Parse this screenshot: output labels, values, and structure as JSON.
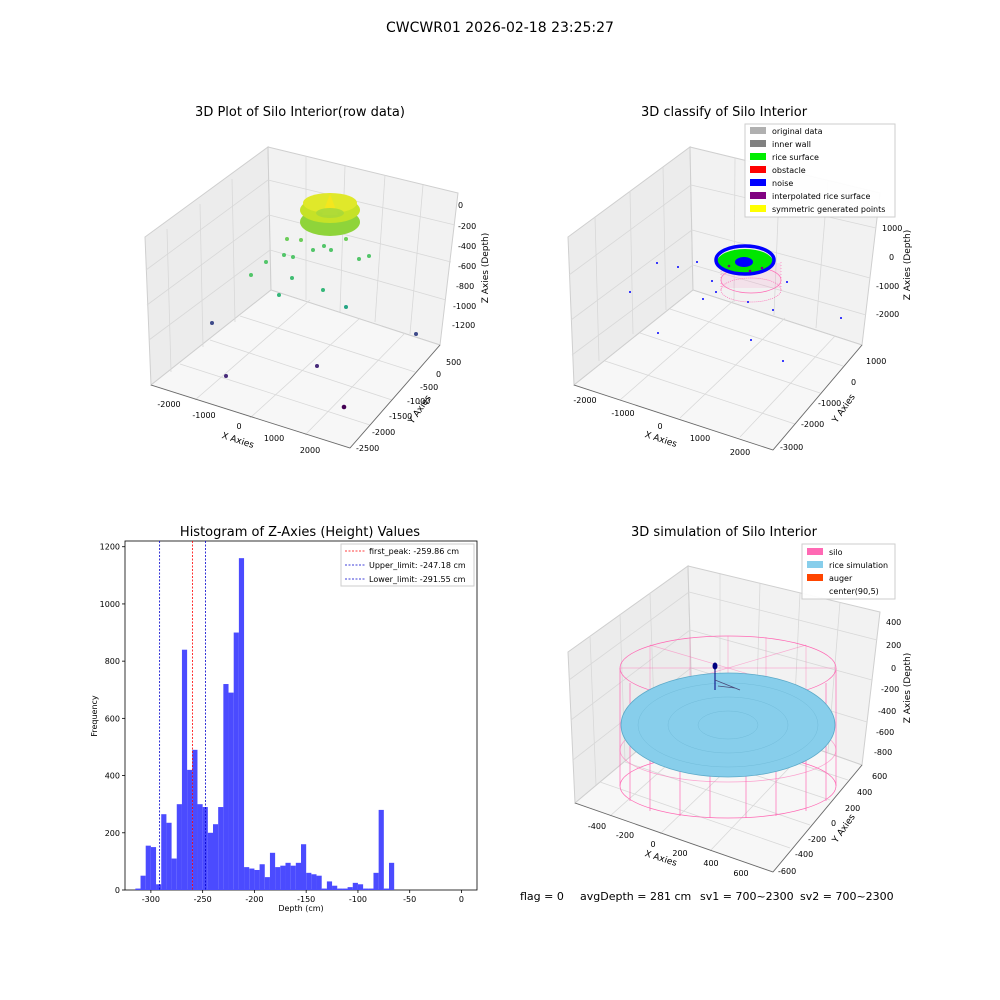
{
  "suptitle": "CWCWR01 2026-02-18 23:25:27",
  "colors": {
    "hist_bar": "#4b4bff",
    "first_peak": "#ff0000",
    "limit_line": "#0000cc",
    "silo": "#ff69b4",
    "rice": "#87ceeb",
    "auger": "#ff4500",
    "noise": "#0000ff"
  },
  "plot1": {
    "title": "3D Plot of Silo Interior(row data)",
    "xlabel": "X Axies",
    "ylabel": "Y Axies",
    "zlabel": "Z Axies (Depth)",
    "xticks": [
      "-2000",
      "-1000",
      "0",
      "1000",
      "2000"
    ],
    "yticks": [
      "500",
      "0",
      "-500",
      "-1000",
      "-1500",
      "-2000",
      "-2500"
    ],
    "zticks": [
      "0",
      "-200",
      "-400",
      "-600",
      "-800",
      "-1000",
      "-1200"
    ]
  },
  "plot2": {
    "title": "3D classify of Silo Interior",
    "xlabel": "X Axies",
    "ylabel": "Y Axies",
    "zlabel": "Z Axies (Depth)",
    "xticks": [
      "-2000",
      "-1000",
      "0",
      "1000",
      "2000"
    ],
    "yticks": [
      "1000",
      "0",
      "-1000",
      "-2000",
      "-3000"
    ],
    "zticks": [
      "1000",
      "0",
      "-1000",
      "-2000"
    ],
    "legend": [
      {
        "label": "original data",
        "color": "#b0b0b0"
      },
      {
        "label": "inner wall",
        "color": "#808080"
      },
      {
        "label": "rice surface",
        "color": "#00ee00"
      },
      {
        "label": "obstacle",
        "color": "#ff0000"
      },
      {
        "label": "noise",
        "color": "#0000ff"
      },
      {
        "label": "interpolated rice surface",
        "color": "#800080"
      },
      {
        "label": "symmetric generated points",
        "color": "#ffff00"
      }
    ]
  },
  "plot4": {
    "title": "3D simulation of Silo Interior",
    "xlabel": "X Axies",
    "ylabel": "Y Axies",
    "zlabel": "Z Axies (Depth)",
    "xticks": [
      "-400",
      "-200",
      "0",
      "200",
      "400",
      "600"
    ],
    "yticks": [
      "600",
      "400",
      "200",
      "0",
      "-200",
      "-400",
      "-600"
    ],
    "zticks": [
      "400",
      "200",
      "0",
      "-200",
      "-400",
      "-600",
      "-800"
    ],
    "legend": [
      {
        "label": "silo",
        "color": "#ff69b4"
      },
      {
        "label": "rice simulation",
        "color": "#87ceeb"
      },
      {
        "label": "auger",
        "color": "#ff4500"
      },
      {
        "label": "center(90,5)",
        "color": ""
      }
    ]
  },
  "status": {
    "flag": "flag = 0",
    "avg": "avgDepth = 281 cm",
    "sv1": "sv1 = 700~2300",
    "sv2": "sv2 = 700~2300"
  },
  "chart_data": {
    "type": "bar",
    "title": "Histogram of Z-Axies (Height) Values",
    "xlabel": "Depth (cm)",
    "ylabel": "Frequency",
    "xlim": [
      -325,
      15
    ],
    "ylim": [
      0,
      1220
    ],
    "xticks": [
      -300,
      -250,
      -200,
      -150,
      -100,
      -50,
      0
    ],
    "yticks": [
      0,
      200,
      400,
      600,
      800,
      1000,
      1200
    ],
    "bin_start": -315,
    "bin_width": 5,
    "values": [
      5,
      50,
      155,
      150,
      20,
      265,
      235,
      110,
      300,
      840,
      420,
      490,
      300,
      290,
      200,
      230,
      290,
      720,
      690,
      900,
      1160,
      80,
      75,
      70,
      90,
      45,
      130,
      80,
      85,
      95,
      85,
      95,
      160,
      60,
      55,
      50,
      5,
      30,
      15,
      5,
      5,
      10,
      25,
      20,
      5,
      5,
      60,
      280,
      5,
      95
    ],
    "vlines": [
      {
        "label": "first_peak: -259.86 cm",
        "x": -259.86,
        "color": "#ff0000"
      },
      {
        "label": "Upper_limit: -247.18 cm",
        "x": -247.18,
        "color": "#0000cc"
      },
      {
        "label": "Lower_limit: -291.55 cm",
        "x": -291.55,
        "color": "#0000cc"
      }
    ]
  }
}
